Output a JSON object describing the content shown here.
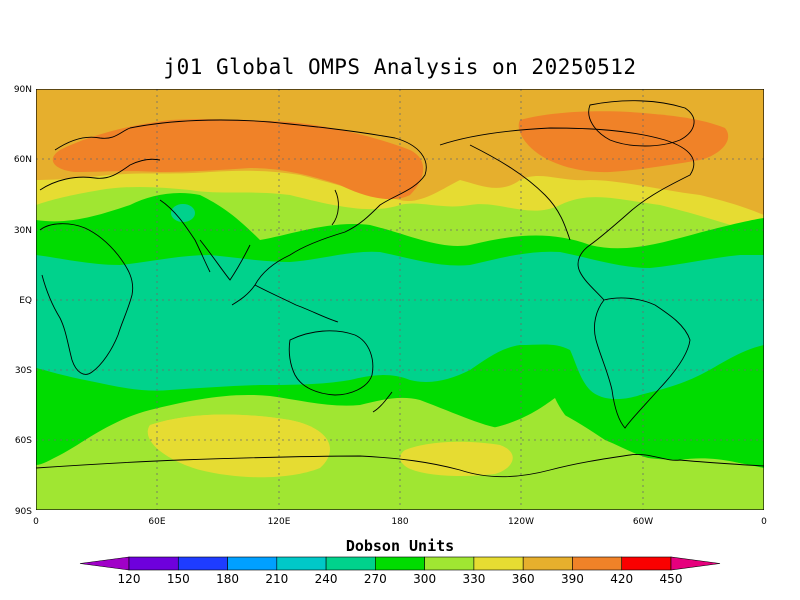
{
  "title": "j01 Global OMPS Analysis on 20250512",
  "map": {
    "lat_labels": [
      "90N",
      "60N",
      "30N",
      "EQ",
      "30S",
      "60S",
      "90S"
    ],
    "lon_labels": [
      "0",
      "60E",
      "120E",
      "180",
      "120W",
      "60W",
      "0"
    ],
    "grid": "dotted"
  },
  "colorbar": {
    "units": "Dobson Units",
    "ticks": [
      "120",
      "150",
      "180",
      "210",
      "240",
      "270",
      "300",
      "330",
      "360",
      "390",
      "420",
      "450"
    ],
    "colors": [
      "#a000c8",
      "#6e00dc",
      "#1e3cff",
      "#00a0ff",
      "#00c8c8",
      "#00d28c",
      "#00dc00",
      "#a0e632",
      "#e6dc32",
      "#e6af2d",
      "#f08228",
      "#fa0000",
      "#e6007d"
    ]
  },
  "palette": {
    "band_270_300": "#00d28c",
    "band_300_330": "#00dc00",
    "band_330_360": "#a0e632",
    "band_360_390": "#e6dc32",
    "band_390_420": "#e6af2d",
    "band_420_450": "#f08228"
  }
}
